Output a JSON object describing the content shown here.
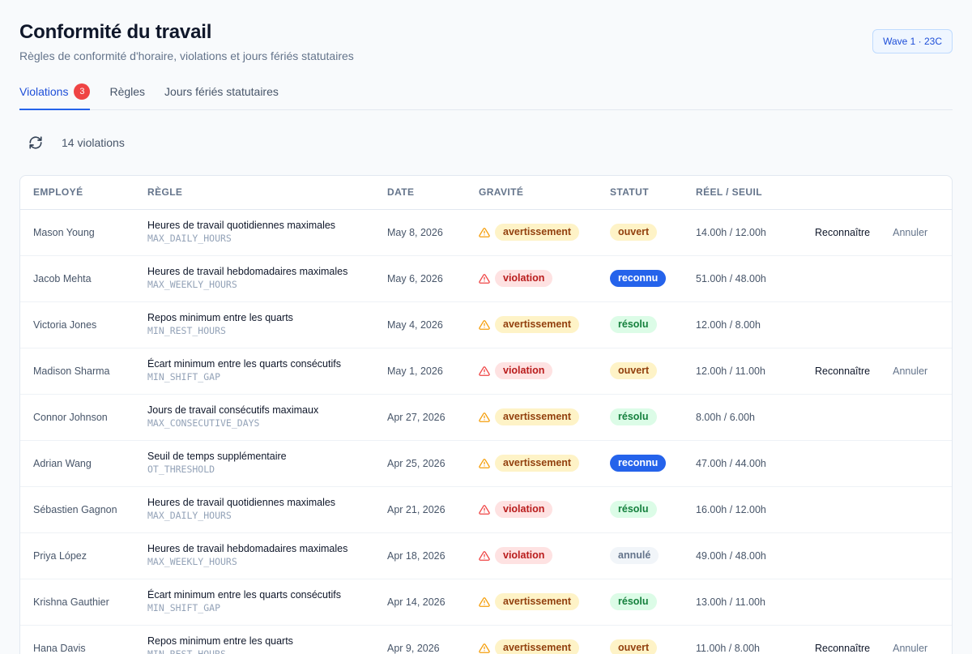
{
  "header": {
    "title": "Conformité du travail",
    "subtitle": "Règles de conformité d'horaire, violations et jours fériés statutaires",
    "wave_badge": "Wave 1 · 23C"
  },
  "tabs": [
    {
      "label": "Violations",
      "count": "3",
      "active": true
    },
    {
      "label": "Règles",
      "active": false
    },
    {
      "label": "Jours fériés statutaires",
      "active": false
    }
  ],
  "toolbar": {
    "count_label": "14 violations",
    "refresh_icon": "refresh-icon"
  },
  "table": {
    "columns": [
      "EMPLOYÉ",
      "RÈGLE",
      "DATE",
      "GRAVITÉ",
      "STATUT",
      "RÉEL / SEUIL",
      ""
    ],
    "actions": {
      "acknowledge": "Reconnaître",
      "cancel": "Annuler"
    },
    "rows": [
      {
        "employee": "Mason Young",
        "rule": "Heures de travail quotidiennes maximales",
        "code": "MAX_DAILY_HOURS",
        "date": "May 8, 2026",
        "severity": "avertissement",
        "severity_kind": "warn",
        "status": "ouvert",
        "status_kind": "ouvert",
        "ratio": "14.00h / 12.00h",
        "actions": true
      },
      {
        "employee": "Jacob Mehta",
        "rule": "Heures de travail hebdomadaires maximales",
        "code": "MAX_WEEKLY_HOURS",
        "date": "May 6, 2026",
        "severity": "violation",
        "severity_kind": "viol",
        "status": "reconnu",
        "status_kind": "reconnu",
        "ratio": "51.00h / 48.00h",
        "actions": false
      },
      {
        "employee": "Victoria Jones",
        "rule": "Repos minimum entre les quarts",
        "code": "MIN_REST_HOURS",
        "date": "May 4, 2026",
        "severity": "avertissement",
        "severity_kind": "warn",
        "status": "résolu",
        "status_kind": "resolu",
        "ratio": "12.00h / 8.00h",
        "actions": false
      },
      {
        "employee": "Madison Sharma",
        "rule": "Écart minimum entre les quarts consécutifs",
        "code": "MIN_SHIFT_GAP",
        "date": "May 1, 2026",
        "severity": "violation",
        "severity_kind": "viol",
        "status": "ouvert",
        "status_kind": "ouvert",
        "ratio": "12.00h / 11.00h",
        "actions": true
      },
      {
        "employee": "Connor Johnson",
        "rule": "Jours de travail consécutifs maximaux",
        "code": "MAX_CONSECUTIVE_DAYS",
        "date": "Apr 27, 2026",
        "severity": "avertissement",
        "severity_kind": "warn",
        "status": "résolu",
        "status_kind": "resolu",
        "ratio": "8.00h / 6.00h",
        "actions": false
      },
      {
        "employee": "Adrian Wang",
        "rule": "Seuil de temps supplémentaire",
        "code": "OT_THRESHOLD",
        "date": "Apr 25, 2026",
        "severity": "avertissement",
        "severity_kind": "warn",
        "status": "reconnu",
        "status_kind": "reconnu",
        "ratio": "47.00h / 44.00h",
        "actions": false
      },
      {
        "employee": "Sébastien Gagnon",
        "rule": "Heures de travail quotidiennes maximales",
        "code": "MAX_DAILY_HOURS",
        "date": "Apr 21, 2026",
        "severity": "violation",
        "severity_kind": "viol",
        "status": "résolu",
        "status_kind": "resolu",
        "ratio": "16.00h / 12.00h",
        "actions": false
      },
      {
        "employee": "Priya López",
        "rule": "Heures de travail hebdomadaires maximales",
        "code": "MAX_WEEKLY_HOURS",
        "date": "Apr 18, 2026",
        "severity": "violation",
        "severity_kind": "viol",
        "status": "annulé",
        "status_kind": "annule",
        "ratio": "49.00h / 48.00h",
        "actions": false
      },
      {
        "employee": "Krishna Gauthier",
        "rule": "Écart minimum entre les quarts consécutifs",
        "code": "MIN_SHIFT_GAP",
        "date": "Apr 14, 2026",
        "severity": "avertissement",
        "severity_kind": "warn",
        "status": "résolu",
        "status_kind": "resolu",
        "ratio": "13.00h / 11.00h",
        "actions": false
      },
      {
        "employee": "Hana Davis",
        "rule": "Repos minimum entre les quarts",
        "code": "MIN_REST_HOURS",
        "date": "Apr 9, 2026",
        "severity": "avertissement",
        "severity_kind": "warn",
        "status": "ouvert",
        "status_kind": "ouvert",
        "ratio": "11.00h / 8.00h",
        "actions": true
      }
    ]
  },
  "colors": {
    "accent": "#2563eb",
    "warning_icon": "#f59e0b",
    "violation_icon": "#ef4444",
    "tab_count_bg": "#ef4444"
  }
}
